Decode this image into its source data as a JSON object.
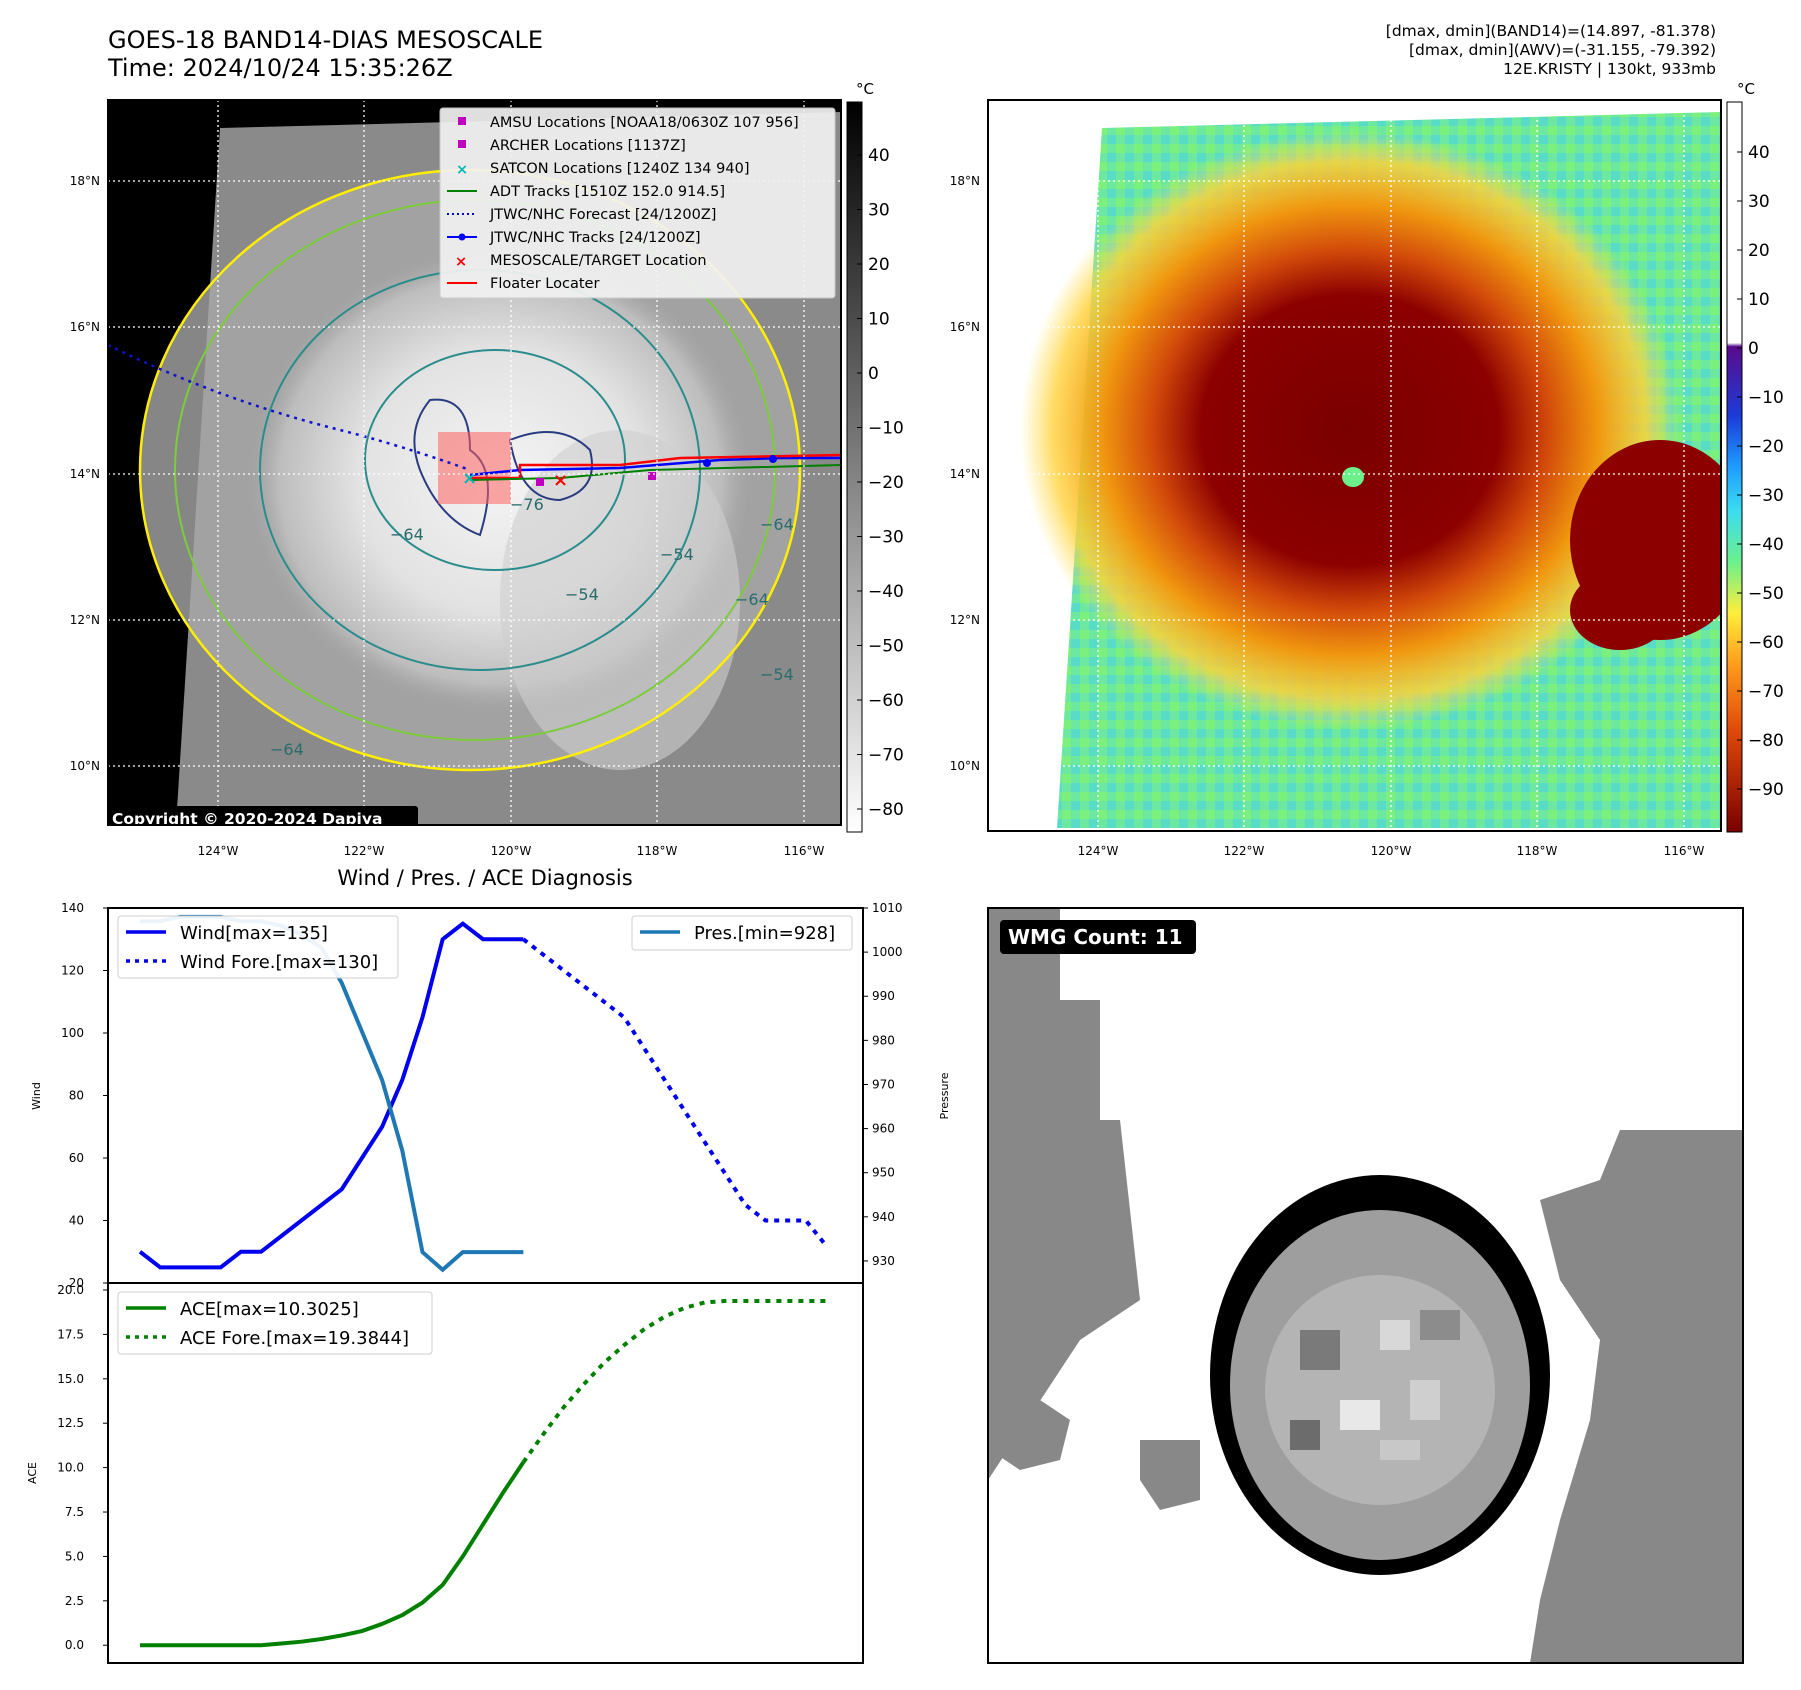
{
  "header": {
    "title": "GOES-18 BAND14-DIAS MESOSCALE",
    "time": "Time: 2024/10/24 15:35:26Z",
    "info_line1": "[dmax, dmin](BAND14)=(14.897, -81.378)",
    "info_line2": "[dmax, dmin](AWV)=(-31.155, -79.392)",
    "info_line3": "12E.KRISTY | 130kt, 933mb"
  },
  "map_axes": {
    "lon_ticks": [
      "124°W",
      "122°W",
      "120°W",
      "118°W",
      "116°W"
    ],
    "lat_ticks": [
      "18°N",
      "16°N",
      "14°N",
      "12°N",
      "10°N"
    ]
  },
  "ir_panel": {
    "copyright": "Copyright © 2020-2024 Dapiya",
    "colorbar_unit": "°C",
    "colorbar_ticks": [
      "40",
      "30",
      "20",
      "10",
      "0",
      "−10",
      "−20",
      "−30",
      "−40",
      "−50",
      "−60",
      "−70",
      "−80"
    ],
    "contour_labels": [
      "−64",
      "−76",
      "−54",
      "−64",
      "−54",
      "−64",
      "−54",
      "−64"
    ],
    "legend": [
      {
        "label": "AMSU Locations [NOAA18/0630Z 107 956]",
        "color": "#c000c0",
        "marker": "square"
      },
      {
        "label": "ARCHER Locations [1137Z]",
        "color": "#c000c0",
        "marker": "square"
      },
      {
        "label": "SATCON Locations [1240Z 134 940]",
        "color": "#00b8b8",
        "marker": "x"
      },
      {
        "label": "ADT Tracks [1510Z 152.0 914.5]",
        "color": "#008000",
        "marker": "line"
      },
      {
        "label": "JTWC/NHC Forecast [24/1200Z]",
        "color": "#0000cc",
        "marker": "dotted"
      },
      {
        "label": "JTWC/NHC Tracks [24/1200Z]",
        "color": "#0000ff",
        "marker": "line-dot"
      },
      {
        "label": "MESOSCALE/TARGET Location",
        "color": "#ff0000",
        "marker": "x"
      },
      {
        "label": "Floater Locater",
        "color": "#ff0000",
        "marker": "line"
      }
    ]
  },
  "awv_panel": {
    "colorbar_unit": "°C",
    "colorbar_ticks": [
      "40",
      "30",
      "20",
      "10",
      "0",
      "−10",
      "−20",
      "−30",
      "−40",
      "−50",
      "−60",
      "−70",
      "−80",
      "−90"
    ]
  },
  "diagnosis_panel": {
    "title": "Wind / Pres. / ACE Diagnosis"
  },
  "wmg_panel": {
    "count_label": "WMG Count: 11"
  },
  "colors": {
    "wind": "#0000ee",
    "pressure": "#1f77b4",
    "ace": "#008000",
    "contour_yellow": "#ffee00",
    "contour_green": "#7ccc3c",
    "contour_teal": "#2a8c8c",
    "contour_navy": "#2a3c80"
  },
  "chart_data": [
    {
      "type": "line",
      "title": "Wind / Pres. / ACE Diagnosis",
      "ylabel": "Wind",
      "ylim": [
        20,
        140
      ],
      "yticks": [
        20,
        40,
        60,
        80,
        100,
        120,
        140
      ],
      "y2label": "Pressure",
      "y2lim": [
        925,
        1010
      ],
      "y2ticks": [
        930,
        940,
        950,
        960,
        970,
        980,
        990,
        1000,
        1010
      ],
      "x": [
        0,
        1,
        2,
        3,
        4,
        5,
        6,
        7,
        8,
        9,
        10,
        11,
        12,
        13,
        14,
        15,
        16,
        17,
        18,
        19,
        20,
        21,
        22,
        23,
        24,
        25,
        26,
        27,
        28,
        29,
        30,
        31,
        32,
        33,
        34
      ],
      "series": [
        {
          "name": "Wind[max=135]",
          "axis": "left",
          "style": "solid",
          "x": [
            0,
            1,
            2,
            3,
            4,
            5,
            6,
            7,
            8,
            9,
            10,
            11,
            12,
            13,
            14,
            15,
            16,
            17,
            18,
            19
          ],
          "values": [
            30,
            25,
            25,
            25,
            25,
            30,
            30,
            35,
            40,
            45,
            50,
            60,
            70,
            85,
            105,
            130,
            135,
            130,
            130,
            130
          ]
        },
        {
          "name": "Wind Fore.[max=130]",
          "axis": "left",
          "style": "dotted",
          "x": [
            19,
            20,
            21,
            22,
            23,
            24,
            25,
            26,
            27,
            28,
            29,
            30,
            31,
            32,
            33,
            34
          ],
          "values": [
            130,
            125,
            120,
            115,
            110,
            105,
            95,
            85,
            75,
            65,
            55,
            45,
            40,
            40,
            40,
            32
          ]
        },
        {
          "name": "Pres.[min=928]",
          "axis": "right",
          "style": "solid",
          "x": [
            0,
            1,
            2,
            3,
            4,
            5,
            6,
            7,
            8,
            9,
            10,
            11,
            12,
            13,
            14,
            15,
            16,
            17,
            18,
            19
          ],
          "values": [
            1007,
            1007,
            1008,
            1008,
            1008,
            1007,
            1007,
            1006,
            1004,
            1001,
            993,
            982,
            971,
            955,
            932,
            928,
            932,
            932,
            932,
            932
          ]
        }
      ],
      "legend": [
        "top-left",
        "top-right"
      ]
    },
    {
      "type": "line",
      "ylabel": "ACE",
      "ylim": [
        -1,
        20
      ],
      "yticks": [
        0.0,
        2.5,
        5.0,
        7.5,
        10.0,
        12.5,
        15.0,
        17.5,
        20.0
      ],
      "series": [
        {
          "name": "ACE[max=10.3025]",
          "style": "solid",
          "x": [
            0,
            1,
            2,
            3,
            4,
            5,
            6,
            7,
            8,
            9,
            10,
            11,
            12,
            13,
            14,
            15,
            16,
            17,
            18,
            19
          ],
          "values": [
            0.0,
            0.0,
            0.0,
            0.0,
            0.0,
            0.0,
            0.0,
            0.1,
            0.2,
            0.35,
            0.55,
            0.8,
            1.2,
            1.7,
            2.4,
            3.4,
            5.0,
            6.8,
            8.6,
            10.3
          ]
        },
        {
          "name": "ACE Fore.[max=19.3844]",
          "style": "dotted",
          "x": [
            19,
            20,
            21,
            22,
            23,
            24,
            25,
            26,
            27,
            28,
            29,
            30,
            31,
            32,
            33,
            34
          ],
          "values": [
            10.3,
            11.9,
            13.4,
            14.7,
            15.9,
            16.9,
            17.8,
            18.5,
            19.0,
            19.3,
            19.38,
            19.38,
            19.38,
            19.38,
            19.38,
            19.38
          ]
        }
      ],
      "legend": "top-left"
    }
  ]
}
